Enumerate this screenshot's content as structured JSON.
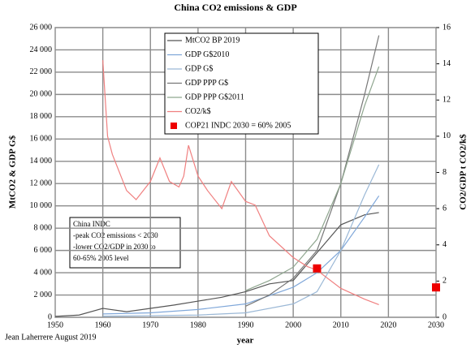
{
  "chart_data": {
    "type": "line",
    "title": "China CO2 emissions & GDP",
    "ylabel": "MtCO2 & GDP G$",
    "y2label": "CO2/GDP t CO2/k$",
    "xlabel": "year",
    "author": "Jean Laherrere August 2019",
    "annotation": [
      "China INDC",
      "-peak CO2 emissions < 2030",
      "-lower CO2/GDP in 2030 to",
      "60-65% 2005 level"
    ],
    "xlim": [
      1950,
      2030
    ],
    "xticks": [
      1950,
      1960,
      1970,
      1980,
      1990,
      2000,
      2010,
      2020,
      2030
    ],
    "ylim": [
      0,
      26000
    ],
    "yticks": [
      0,
      {
        "value": 2000,
        "label": "2 000"
      },
      {
        "value": 4000,
        "label": "4 000"
      },
      {
        "value": 6000,
        "label": "6 000"
      },
      {
        "value": 8000,
        "label": "8 000"
      },
      {
        "value": 10000,
        "label": "10 000"
      },
      {
        "value": 12000,
        "label": "12 000"
      },
      {
        "value": 14000,
        "label": "14 000"
      },
      {
        "value": 16000,
        "label": "16 000"
      },
      {
        "value": 18000,
        "label": "18 000"
      },
      {
        "value": 20000,
        "label": "20 000"
      },
      {
        "value": 22000,
        "label": "22 000"
      },
      {
        "value": 24000,
        "label": "24 000"
      },
      {
        "value": 26000,
        "label": "26 000"
      }
    ],
    "y2lim": [
      0,
      16
    ],
    "y2ticks": [
      0,
      2,
      4,
      6,
      8,
      10,
      12,
      14,
      16
    ],
    "grid": true,
    "series": [
      {
        "name": "MtCO2 BP 2019",
        "color": "#555555",
        "x": [
          1950,
          1955,
          1960,
          1965,
          1970,
          1975,
          1980,
          1985,
          1990,
          1995,
          2000,
          2005,
          2010,
          2015,
          2018
        ],
        "values": [
          80,
          200,
          800,
          500,
          800,
          1100,
          1450,
          1800,
          2300,
          3000,
          3300,
          5800,
          8300,
          9200,
          9400
        ]
      },
      {
        "name": "GDP G$2010",
        "color": "#7fa7d9",
        "x": [
          1960,
          1970,
          1980,
          1990,
          2000,
          2005,
          2010,
          2015,
          2018
        ],
        "values": [
          300,
          400,
          700,
          1200,
          2700,
          4000,
          6000,
          9000,
          10900
        ]
      },
      {
        "name": "GDP G$",
        "color": "#9bb8d6",
        "x": [
          1960,
          1970,
          1980,
          1990,
          2000,
          2005,
          2010,
          2015,
          2018
        ],
        "values": [
          100,
          150,
          200,
          400,
          1200,
          2300,
          6000,
          11000,
          13700
        ]
      },
      {
        "name": "GDP PPP G$",
        "color": "#777777",
        "x": [
          1990,
          1995,
          2000,
          2005,
          2010,
          2015,
          2018
        ],
        "values": [
          1000,
          2000,
          3500,
          6000,
          12000,
          20000,
          25300
        ]
      },
      {
        "name": "GDP PPP G$2011",
        "color": "#8fa68f",
        "x": [
          1990,
          1995,
          2000,
          2005,
          2010,
          2015,
          2018
        ],
        "values": [
          2400,
          3300,
          4500,
          7000,
          12000,
          19000,
          22500
        ]
      },
      {
        "name": "CO2/k$",
        "color": "#f08080",
        "axis": "y2",
        "x": [
          1960,
          1961,
          1962,
          1965,
          1967,
          1970,
          1972,
          1974,
          1976,
          1977,
          1978,
          1980,
          1982,
          1985,
          1987,
          1990,
          1992,
          1995,
          2000,
          2003,
          2005,
          2010,
          2015,
          2018
        ],
        "values": [
          14.2,
          10,
          9,
          7,
          6.5,
          7.5,
          8.8,
          7.5,
          7.2,
          7.8,
          9.5,
          7.8,
          7,
          6,
          7.5,
          6.4,
          6.2,
          4.5,
          3.3,
          2.8,
          2.6,
          1.6,
          1.0,
          0.7
        ]
      },
      {
        "name": "COP21 INDC 2030 = 60% 2005",
        "color": "#ee0000",
        "axis": "y2",
        "marker": "square",
        "x": [
          2005,
          2030
        ],
        "values": [
          2.7,
          1.65
        ]
      }
    ]
  }
}
